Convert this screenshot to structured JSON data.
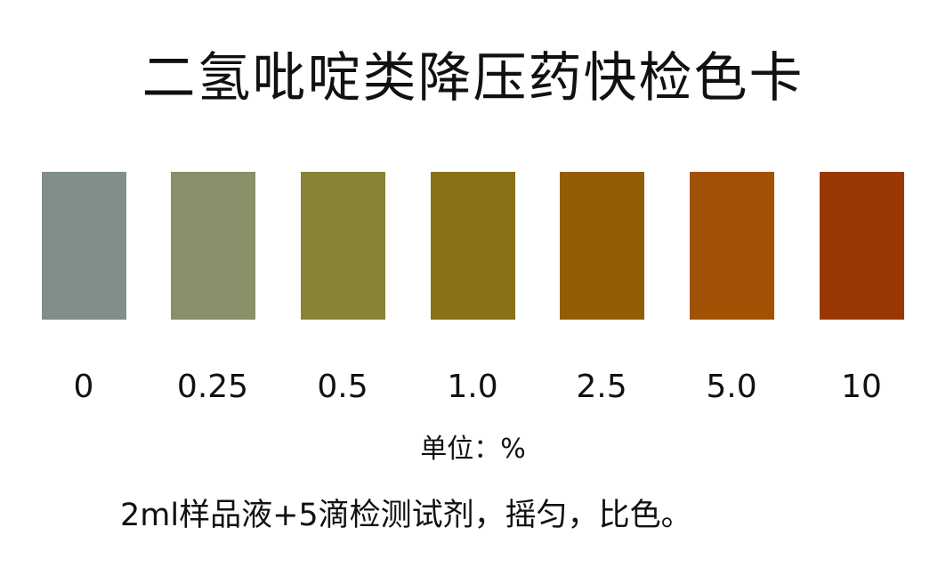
{
  "title": "二氢吡啶类降压药快检色卡",
  "swatches": [
    {
      "label": "0",
      "color": "#808f87"
    },
    {
      "label": "0.25",
      "color": "#8a8e69"
    },
    {
      "label": "0.5",
      "color": "#888433"
    },
    {
      "label": "1.0",
      "color": "#8a7016"
    },
    {
      "label": "2.5",
      "color": "#935d05"
    },
    {
      "label": "5.0",
      "color": "#a15205"
    },
    {
      "label": "10",
      "color": "#9a3803"
    }
  ],
  "unit": "单位：%",
  "instruction": "2ml样品液+5滴检测试剂，摇匀，比色。"
}
